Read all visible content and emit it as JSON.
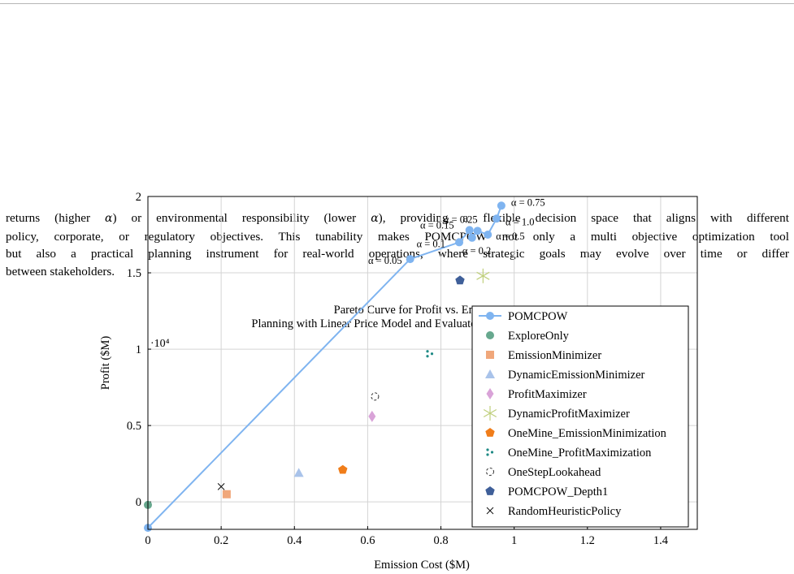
{
  "paragraph": {
    "line1": [
      "returns (higher ",
      "α",
      ") or environmental responsibility (lower ",
      "α",
      "), providing a flexible decision space that aligns with different"
    ],
    "line2": "policy, corporate, or regulatory objectives. This tunability makes POMCPOW not only a multi objective optimization tool",
    "line3": "but also a practical planning instrument for real-world operations, where strategic goals may evolve over time or differ",
    "line4": "between stakeholders."
  },
  "chart_data": {
    "type": "scatter",
    "title": "Pareto Curve for Profit vs. Emissions",
    "subtitle": "Planning with Linear Price Model and Evaluated with Historical Pricing",
    "xlabel": "Emission Cost ($M)",
    "ylabel": "Profit ($M)",
    "y_multiplier": "·10⁴",
    "xlim": [
      0,
      1.5
    ],
    "ylim": [
      -0.18,
      2.0
    ],
    "x_ticks": [
      0,
      0.2,
      0.4,
      0.6,
      0.8,
      1,
      1.2,
      1.4
    ],
    "x_tick_labels": [
      "0",
      "0.2",
      "0.4",
      "0.6",
      "0.8",
      "1",
      "1.2",
      "1.4"
    ],
    "y_ticks": [
      0,
      0.5,
      1,
      1.5,
      2
    ],
    "y_tick_labels": [
      "0",
      "0.5",
      "1",
      "1.5",
      "2"
    ],
    "grid": true,
    "legend_position": "inside-right",
    "series": [
      {
        "name": "POMCPOW",
        "marker": "circle-line",
        "color": "#7fb4f0",
        "points": [
          [
            0,
            -0.17
          ],
          [
            0.716,
            1.59
          ],
          [
            0.85,
            1.7
          ],
          [
            0.878,
            1.78
          ],
          [
            0.885,
            1.73
          ],
          [
            0.9,
            1.775
          ],
          [
            0.928,
            1.75
          ],
          [
            0.952,
            1.855
          ],
          [
            0.965,
            1.94
          ]
        ]
      },
      {
        "name": "ExploreOnly",
        "marker": "circle",
        "color": "#67a88e",
        "points": [
          [
            0.0,
            -0.02
          ]
        ]
      },
      {
        "name": "EmissionMinimizer",
        "marker": "square",
        "color": "#f0a77a",
        "points": [
          [
            0.215,
            0.05
          ]
        ]
      },
      {
        "name": "DynamicEmissionMinimizer",
        "marker": "triangle",
        "color": "#a9c3ea",
        "points": [
          [
            0.412,
            0.19
          ]
        ]
      },
      {
        "name": "ProfitMaximizer",
        "marker": "diamond",
        "color": "#d9a3d8",
        "points": [
          [
            0.612,
            0.56
          ]
        ]
      },
      {
        "name": "DynamicProfitMaximizer",
        "marker": "star",
        "color": "#bfcf7c",
        "points": [
          [
            0.915,
            1.48
          ]
        ]
      },
      {
        "name": "OneMine_EmissionMinimization",
        "marker": "pentagon",
        "color": "#f07d1a",
        "points": [
          [
            0.532,
            0.21
          ]
        ]
      },
      {
        "name": "OneMine_ProfitMaximization",
        "marker": "tri-dots",
        "color": "#1f8a85",
        "points": [
          [
            0.77,
            0.97
          ]
        ]
      },
      {
        "name": "OneStepLookahead",
        "marker": "dashed-circle",
        "color": "#333333",
        "points": [
          [
            0.62,
            0.69
          ]
        ]
      },
      {
        "name": "POMCPOW_Depth1",
        "marker": "pentagon",
        "color": "#3f5f99",
        "points": [
          [
            0.852,
            1.45
          ]
        ]
      },
      {
        "name": "RandomHeuristicPolicy",
        "marker": "x",
        "color": "#111111",
        "points": [
          [
            0.2,
            0.1
          ]
        ]
      }
    ],
    "annotations": [
      {
        "text": "α = 0.05",
        "x": 0.716,
        "y": 1.59
      },
      {
        "text": "α = 0.1",
        "x": 0.85,
        "y": 1.7
      },
      {
        "text": "α = 0.15",
        "x": 0.878,
        "y": 1.78
      },
      {
        "text": "α = 0.25",
        "x": 0.9,
        "y": 1.775
      },
      {
        "text": "α = 0.2",
        "x": 0.885,
        "y": 1.73
      },
      {
        "text": "α = 0.5",
        "x": 0.928,
        "y": 1.75
      },
      {
        "text": "α = 1.0",
        "x": 0.952,
        "y": 1.855
      },
      {
        "text": "α = 0.75",
        "x": 0.965,
        "y": 1.94
      }
    ]
  }
}
